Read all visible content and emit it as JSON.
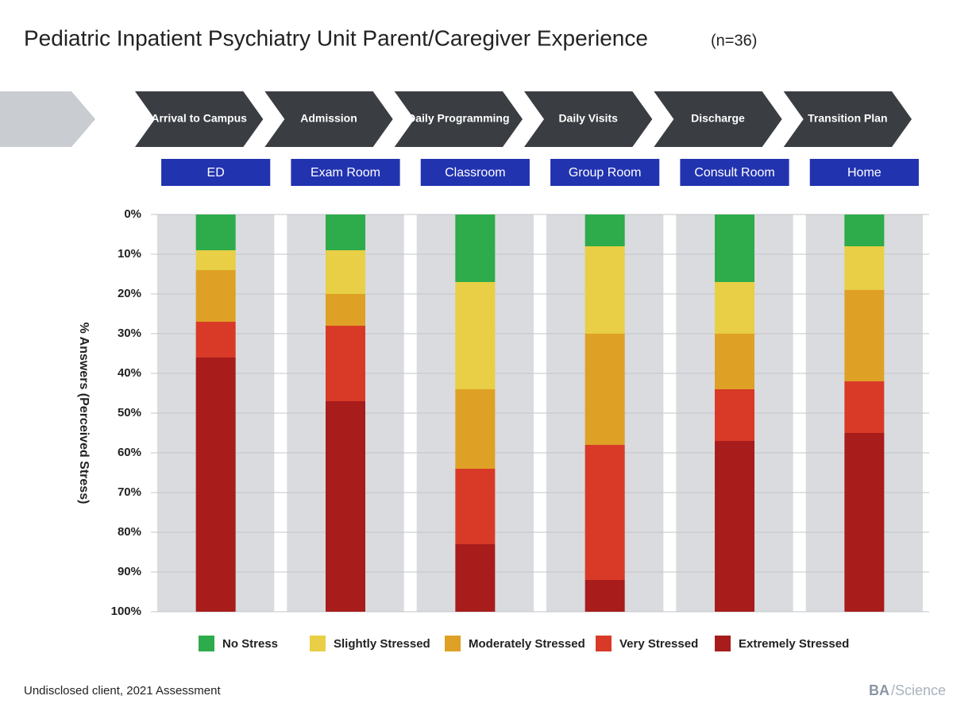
{
  "chart_data": {
    "type": "bar",
    "stacked": true,
    "y_inverted": true,
    "title": "Pediatric Inpatient Psychiatry Unit Parent/Caregiver Experience",
    "subtitle": "(n=36)",
    "y_label": "% Answers (Perceived Stress)",
    "stages": [
      "Arrival to Campus",
      "Admission",
      "Daily Programming",
      "Daily Visits",
      "Discharge",
      "Transition Plan"
    ],
    "categories": [
      "ED",
      "Exam Room",
      "Classroom",
      "Group Room",
      "Consult Room",
      "Home"
    ],
    "series": [
      {
        "name": "No Stress",
        "color": "#2eab4a",
        "values": [
          9,
          9,
          17,
          8,
          17,
          8
        ]
      },
      {
        "name": "Slightly Stressed",
        "color": "#e8cf45",
        "values": [
          5,
          11,
          27,
          22,
          13,
          11
        ]
      },
      {
        "name": "Moderately Stressed",
        "color": "#dea126",
        "values": [
          13,
          8,
          20,
          28,
          14,
          23
        ]
      },
      {
        "name": "Very Stressed",
        "color": "#d83a27",
        "values": [
          9,
          19,
          19,
          34,
          13,
          13
        ]
      },
      {
        "name": "Extremely Stressed",
        "color": "#a81c1c",
        "values": [
          64,
          53,
          17,
          8,
          43,
          45
        ]
      }
    ],
    "ylim": [
      0,
      100
    ],
    "yticks": [
      {
        "value": 0,
        "label": "0%"
      },
      {
        "value": 10,
        "label": "10%"
      },
      {
        "value": 20,
        "label": "20%"
      },
      {
        "value": 30,
        "label": "30%"
      },
      {
        "value": 40,
        "label": "40%"
      },
      {
        "value": 50,
        "label": "50%"
      },
      {
        "value": 60,
        "label": "60%"
      },
      {
        "value": 70,
        "label": "70%"
      },
      {
        "value": 80,
        "label": "80%"
      },
      {
        "value": 90,
        "label": "90%"
      },
      {
        "value": 100,
        "label": "100%"
      }
    ],
    "grid": true,
    "legend": "bottom",
    "footnote": "Undisclosed client, 2021 Assessment",
    "logo_bold": "BA",
    "logo_rest": "/Science"
  }
}
